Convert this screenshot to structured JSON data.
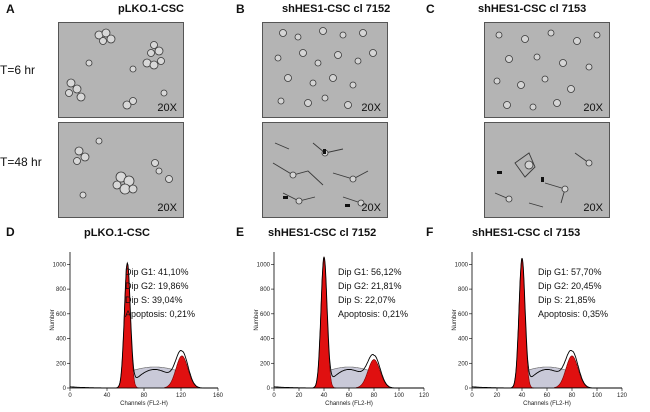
{
  "panels": {
    "A": {
      "letter": "A",
      "title": "pLKO.1-CSC"
    },
    "B": {
      "letter": "B",
      "title": "shHES1-CSC cl 7152"
    },
    "C": {
      "letter": "C",
      "title": "shHES1-CSC cl 7153"
    },
    "D": {
      "letter": "D",
      "title": "pLKO.1-CSC"
    },
    "E": {
      "letter": "E",
      "title": "shHES1-CSC cl 7152"
    },
    "F": {
      "letter": "F",
      "title": "shHES1-CSC cl 7153"
    }
  },
  "row_labels": [
    "T=6 hr",
    "T=48 hr"
  ],
  "magnification": "20X",
  "micrographs": [
    {
      "panel": "A",
      "time": "T=6 hr"
    },
    {
      "panel": "B",
      "time": "T=6 hr"
    },
    {
      "panel": "C",
      "time": "T=6 hr"
    },
    {
      "panel": "A",
      "time": "T=48 hr"
    },
    {
      "panel": "B",
      "time": "T=48 hr"
    },
    {
      "panel": "C",
      "time": "T=48 hr"
    }
  ],
  "chart_data": [
    {
      "type": "area",
      "panel": "D",
      "title": "pLKO.1-CSC",
      "xlabel": "Channels (FL2-H)",
      "ylabel": "Number",
      "xlim": [
        0,
        160
      ],
      "ylim": [
        0,
        1100
      ],
      "xticks": [
        "0",
        "40",
        "80",
        "120",
        "160"
      ],
      "yticks": [
        "0",
        "200",
        "400",
        "600",
        "800",
        "1000"
      ],
      "g1_peak": {
        "x": 62,
        "y": 1010
      },
      "g2_peak": {
        "x": 121,
        "y": 260
      },
      "stats": {
        "dip_g1": "Dip G1: 41,10%",
        "dip_g2": "Dip G2: 19,86%",
        "dip_s": "Dip S: 39,04%",
        "apoptosis": "Apoptosis: 0,21%"
      }
    },
    {
      "type": "area",
      "panel": "E",
      "title": "shHES1-CSC cl 7152",
      "xlabel": "Channels (FL2-H)",
      "ylabel": "Number",
      "xlim": [
        0,
        120
      ],
      "ylim": [
        0,
        1100
      ],
      "xticks": [
        "0",
        "20",
        "40",
        "60",
        "80",
        "100",
        "120"
      ],
      "yticks": [
        "0",
        "200",
        "400",
        "600",
        "800",
        "1000"
      ],
      "g1_peak": {
        "x": 40,
        "y": 1060
      },
      "g2_peak": {
        "x": 80,
        "y": 230
      },
      "stats": {
        "dip_g1": "Dip G1: 56,12%",
        "dip_g2": "Dip G2: 21,81%",
        "dip_s": "Dip S: 22,07%",
        "apoptosis": "Apoptosis: 0,21%"
      }
    },
    {
      "type": "area",
      "panel": "F",
      "title": "shHES1-CSC cl 7153",
      "xlabel": "Channels (FL2-H)",
      "ylabel": "Number",
      "xlim": [
        0,
        120
      ],
      "ylim": [
        0,
        1100
      ],
      "xticks": [
        "0",
        "20",
        "40",
        "60",
        "80",
        "100",
        "120"
      ],
      "yticks": [
        "0",
        "200",
        "400",
        "600",
        "800",
        "1000"
      ],
      "g1_peak": {
        "x": 40,
        "y": 1050
      },
      "g2_peak": {
        "x": 80,
        "y": 260
      },
      "stats": {
        "dip_g1": "Dip G1: 57,70%",
        "dip_g2": "Dip G2: 20,45%",
        "dip_s": "Dip S: 21,85%",
        "apoptosis": "Apoptosis: 0,35%"
      }
    }
  ]
}
